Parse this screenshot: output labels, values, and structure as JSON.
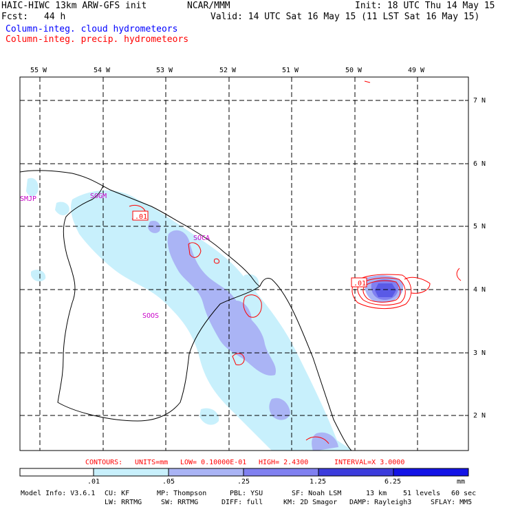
{
  "header": {
    "title": "HAIC-HIWC 13km ARW-GFS init",
    "org": "NCAR/MMM",
    "init": "Init: 18 UTC Thu 14 May 15",
    "fcst_label": "Fcst:",
    "fcst_value": "44 h",
    "valid": "Valid: 14 UTC Sat 16 May 15 (11 LST Sat 16 May 15)",
    "legend_cloud": "Column-integ. cloud hydrometeors",
    "legend_precip": "Column-integ. precip. hydrometeors"
  },
  "map": {
    "lon_labels": [
      "55 W",
      "54 W",
      "53 W",
      "52 W",
      "51 W",
      "50 W",
      "49 W"
    ],
    "lat_labels": [
      "7 N",
      "6 N",
      "5 N",
      "4 N",
      "3 N",
      "2 N"
    ],
    "stations": [
      "SMJP",
      "SOGM",
      "SOCA",
      "SOOS"
    ],
    "contour_labels": [
      ".01",
      ".01"
    ]
  },
  "contours_line": {
    "label": "CONTOURS:",
    "units": "UNITS=mm",
    "low": "LOW= 0.10000E-01",
    "high": "HIGH= 2.4300",
    "interval": "INTERVAL=X 3.0000"
  },
  "colorbar": {
    "ticks": [
      ".01",
      ".05",
      ".25",
      "1.25",
      "6.25"
    ],
    "units": "mm",
    "colors": [
      "#ffffff",
      "#c8f0fc",
      "#aab4f5",
      "#8080f0",
      "#5a5ae6",
      "#3c3cdc",
      "#1414e6"
    ]
  },
  "model_info": {
    "line1": [
      "Model Info: V3.6.1",
      "CU: KF",
      "MP: Thompson",
      "PBL: YSU",
      "SF: Noah LSM",
      "13 km",
      "51 levels",
      "60 sec"
    ],
    "line2": [
      "LW: RRTMG",
      "SW: RRTMG",
      "DIFF: full",
      "KM: 2D Smagor",
      "DAMP: Rayleigh3",
      "SFLAY: MM5"
    ]
  }
}
